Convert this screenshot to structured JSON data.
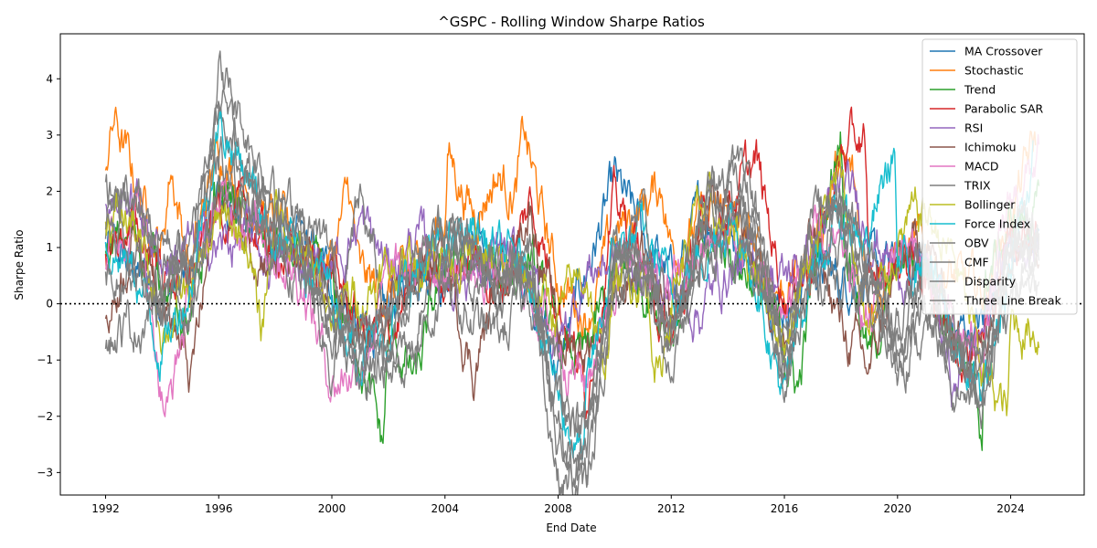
{
  "chart_data": {
    "type": "line",
    "title": "^GSPC - Rolling Window Sharpe Ratios",
    "xlabel": "End Date",
    "ylabel": "Sharpe Ratio",
    "xlim": [
      1990.4,
      2026.6
    ],
    "ylim": [
      -3.4,
      4.8
    ],
    "x_ticks": [
      1992,
      1996,
      2000,
      2004,
      2008,
      2012,
      2016,
      2020,
      2024
    ],
    "x_tick_labels": [
      "1992",
      "1996",
      "2000",
      "2004",
      "2008",
      "2012",
      "2016",
      "2020",
      "2024"
    ],
    "y_ticks": [
      -3,
      -2,
      -1,
      0,
      1,
      2,
      3,
      4
    ],
    "y_tick_labels": [
      "−3",
      "−2",
      "−1",
      "0",
      "1",
      "2",
      "3",
      "4"
    ],
    "reference_line": {
      "y": 0,
      "style": "dotted",
      "color": "#000000"
    },
    "legend_position": "top-right",
    "series": [
      {
        "name": "MA Crossover",
        "color": "#1f77b4",
        "x": [
          1992.0,
          1993.0,
          1994.0,
          1995.0,
          1996.0,
          1997.0,
          1998.0,
          1999.0,
          2000.0,
          2001.0,
          2002.0,
          2003.0,
          2004.0,
          2005.0,
          2006.0,
          2007.0,
          2008.0,
          2009.0,
          2010.0,
          2011.0,
          2012.0,
          2013.0,
          2014.0,
          2015.0,
          2016.0,
          2017.0,
          2018.0,
          2019.0,
          2020.0,
          2021.0,
          2022.0,
          2023.0,
          2024.0,
          2025.0
        ],
        "y": [
          1.0,
          0.6,
          0.2,
          0.4,
          1.8,
          1.6,
          1.2,
          1.0,
          0.4,
          -0.6,
          -0.2,
          0.8,
          0.6,
          0.9,
          0.7,
          0.5,
          -1.2,
          0.6,
          2.1,
          1.2,
          0.4,
          1.5,
          1.4,
          0.6,
          0.0,
          0.7,
          0.4,
          0.6,
          0.6,
          0.8,
          -0.6,
          -0.4,
          1.2,
          1.0
        ]
      },
      {
        "name": "Stochastic",
        "color": "#ff7f0e",
        "x": [
          1992.0,
          1992.3,
          1993.0,
          1994.0,
          1994.3,
          1995.0,
          1996.0,
          1997.0,
          1998.0,
          1999.0,
          2000.0,
          2000.6,
          2001.0,
          2002.0,
          2003.0,
          2004.0,
          2004.1,
          2005.0,
          2005.8,
          2006.5,
          2006.8,
          2007.5,
          2008.0,
          2009.0,
          2010.0,
          2011.0,
          2011.7,
          2012.0,
          2013.0,
          2014.0,
          2015.0,
          2016.0,
          2017.0,
          2017.9,
          2018.4,
          2019.0,
          2020.0,
          2021.0,
          2022.0,
          2023.0,
          2024.0,
          2024.9
        ],
        "y": [
          2.6,
          3.3,
          2.2,
          1.0,
          2.5,
          0.6,
          2.8,
          2.0,
          1.4,
          1.0,
          0.8,
          2.0,
          0.4,
          0.2,
          0.6,
          1.6,
          2.7,
          1.6,
          2.3,
          2.0,
          3.0,
          1.4,
          0.4,
          -0.2,
          1.2,
          1.8,
          2.1,
          1.0,
          1.4,
          1.6,
          0.9,
          0.2,
          0.9,
          2.4,
          2.2,
          0.2,
          0.8,
          1.0,
          0.4,
          0.2,
          1.6,
          2.9
        ]
      },
      {
        "name": "Trend",
        "color": "#2ca02c",
        "x": [
          1992.0,
          1993.0,
          1994.0,
          1995.0,
          1996.0,
          1997.0,
          1998.0,
          1999.0,
          2000.0,
          2001.0,
          2001.8,
          2002.0,
          2003.0,
          2004.0,
          2005.0,
          2006.0,
          2007.0,
          2008.0,
          2009.0,
          2010.0,
          2011.0,
          2012.0,
          2013.0,
          2014.0,
          2015.0,
          2016.0,
          2016.5,
          2017.0,
          2018.0,
          2018.1,
          2019.0,
          2020.0,
          2021.0,
          2022.0,
          2023.0,
          2023.1,
          2024.0,
          2025.0
        ],
        "y": [
          0.8,
          1.2,
          0.6,
          -0.6,
          2.2,
          1.4,
          1.0,
          0.6,
          0.2,
          -0.8,
          -2.6,
          -0.6,
          -1.4,
          0.8,
          0.6,
          0.4,
          0.8,
          -0.8,
          -1.0,
          0.6,
          0.4,
          -0.4,
          0.8,
          1.0,
          0.4,
          -0.8,
          -1.5,
          0.4,
          3.3,
          1.5,
          -1.0,
          0.6,
          0.8,
          -0.4,
          -2.3,
          0.4,
          1.4,
          1.6
        ]
      },
      {
        "name": "Parabolic SAR",
        "color": "#d62728",
        "x": [
          1992.0,
          1993.0,
          1994.0,
          1995.0,
          1996.0,
          1997.0,
          1998.0,
          1999.0,
          2000.0,
          2001.0,
          2002.0,
          2003.0,
          2004.0,
          2005.0,
          2006.0,
          2007.0,
          2008.0,
          2009.0,
          2010.0,
          2011.0,
          2012.0,
          2013.0,
          2014.0,
          2015.0,
          2016.0,
          2017.0,
          2018.0,
          2018.8,
          2019.0,
          2020.0,
          2021.0,
          2022.0,
          2023.0,
          2024.0,
          2025.0
        ],
        "y": [
          1.0,
          1.4,
          0.6,
          0.4,
          1.8,
          1.4,
          1.0,
          0.8,
          0.6,
          -0.4,
          -0.6,
          0.4,
          0.6,
          0.8,
          0.2,
          1.8,
          0.2,
          -1.6,
          1.8,
          0.8,
          -0.8,
          1.2,
          1.8,
          2.5,
          0.2,
          0.8,
          2.6,
          3.0,
          0.4,
          0.8,
          0.6,
          -0.6,
          -0.6,
          1.2,
          1.4
        ]
      },
      {
        "name": "RSI",
        "color": "#9467bd",
        "x": [
          1992.0,
          1993.0,
          1994.0,
          1995.0,
          1996.0,
          1997.0,
          1998.0,
          1999.0,
          2000.0,
          2001.0,
          2002.0,
          2003.0,
          2004.0,
          2005.0,
          2006.0,
          2007.0,
          2008.0,
          2009.0,
          2010.0,
          2011.0,
          2012.0,
          2013.0,
          2014.0,
          2015.0,
          2016.0,
          2017.0,
          2018.0,
          2019.0,
          2020.0,
          2021.0,
          2022.0,
          2023.0,
          2024.0,
          2025.0
        ],
        "y": [
          1.7,
          1.9,
          0.8,
          1.0,
          1.0,
          1.2,
          0.6,
          0.8,
          0.6,
          1.5,
          0.6,
          1.2,
          0.4,
          0.6,
          0.8,
          0.4,
          -0.8,
          0.6,
          0.8,
          0.6,
          0.2,
          -0.1,
          0.6,
          0.8,
          0.4,
          1.0,
          2.1,
          1.4,
          0.6,
          0.8,
          -1.6,
          -0.4,
          1.2,
          1.0
        ]
      },
      {
        "name": "Ichimoku",
        "color": "#8c564b",
        "x": [
          1992.0,
          1993.0,
          1994.0,
          1995.0,
          1996.0,
          1997.0,
          1998.0,
          1999.0,
          2000.0,
          2001.0,
          2002.0,
          2003.0,
          2004.0,
          2005.0,
          2006.0,
          2007.0,
          2008.0,
          2009.0,
          2010.0,
          2011.0,
          2012.0,
          2013.0,
          2014.0,
          2015.0,
          2016.0,
          2017.0,
          2018.0,
          2019.0,
          2020.0,
          2021.0,
          2022.0,
          2023.0,
          2024.0,
          2025.0
        ],
        "y": [
          -0.4,
          1.3,
          0.4,
          -1.4,
          2.0,
          1.2,
          0.8,
          0.6,
          0.4,
          -0.8,
          -0.4,
          0.6,
          0.8,
          -1.2,
          0.6,
          1.8,
          -0.6,
          -0.8,
          0.4,
          0.6,
          -0.6,
          1.2,
          2.0,
          0.8,
          -0.4,
          1.2,
          -0.4,
          -1.2,
          0.6,
          1.2,
          -0.6,
          -0.8,
          1.4,
          1.2
        ]
      },
      {
        "name": "MACD",
        "color": "#e377c2",
        "x": [
          1992.0,
          1993.0,
          1993.1,
          1994.0,
          1994.2,
          1995.0,
          1996.0,
          1997.0,
          1998.0,
          1999.0,
          2000.0,
          2001.0,
          2002.0,
          2003.0,
          2004.0,
          2005.0,
          2006.0,
          2007.0,
          2008.0,
          2009.0,
          2010.0,
          2011.0,
          2012.0,
          2013.0,
          2014.0,
          2015.0,
          2016.0,
          2017.0,
          2018.0,
          2019.0,
          2020.0,
          2021.0,
          2022.0,
          2023.0,
          2024.0,
          2025.0
        ],
        "y": [
          0.8,
          1.6,
          2.2,
          -1.6,
          -1.9,
          0.2,
          1.8,
          1.6,
          1.0,
          0.4,
          -1.4,
          -1.0,
          0.4,
          0.6,
          0.8,
          0.4,
          0.6,
          0.2,
          -0.6,
          -1.4,
          0.6,
          0.8,
          0.2,
          0.8,
          1.2,
          0.6,
          -0.2,
          1.0,
          0.8,
          -0.4,
          1.2,
          0.6,
          -0.6,
          -0.8,
          1.8,
          2.6
        ]
      },
      {
        "name": "TRIX",
        "color": "#7f7f7f",
        "x": [
          1992.0,
          1993.0,
          1994.0,
          1995.0,
          1996.0,
          1997.0,
          1998.0,
          1999.0,
          2000.0,
          2001.0,
          2002.0,
          2003.0,
          2004.0,
          2005.0,
          2006.0,
          2007.0,
          2008.0,
          2009.0,
          2010.0,
          2011.0,
          2012.0,
          2013.0,
          2014.0,
          2015.0,
          2016.0,
          2017.0,
          2018.0,
          2019.0,
          2020.0,
          2021.0,
          2022.0,
          2023.0,
          2024.0,
          2025.0
        ],
        "y": [
          1.4,
          1.8,
          0.8,
          0.6,
          3.8,
          2.4,
          1.6,
          1.2,
          -1.2,
          1.8,
          -0.4,
          0.4,
          1.2,
          0.6,
          0.4,
          0.8,
          -2.8,
          -3.2,
          0.6,
          0.8,
          -0.8,
          1.8,
          2.0,
          1.4,
          -1.2,
          1.2,
          1.6,
          0.6,
          -1.0,
          0.6,
          -1.4,
          -1.8,
          0.8,
          1.2
        ]
      },
      {
        "name": "Bollinger",
        "color": "#bcbd22",
        "x": [
          1992.0,
          1993.0,
          1994.0,
          1995.0,
          1996.0,
          1997.0,
          1997.5,
          1998.0,
          1999.0,
          2000.0,
          2001.0,
          2002.0,
          2003.0,
          2004.0,
          2005.0,
          2006.0,
          2007.0,
          2008.0,
          2009.0,
          2009.6,
          2010.0,
          2011.0,
          2011.6,
          2012.0,
          2013.0,
          2014.0,
          2015.0,
          2016.0,
          2017.0,
          2018.0,
          2019.0,
          2020.0,
          2021.0,
          2022.0,
          2023.0,
          2023.9,
          2024.0,
          2025.0
        ],
        "y": [
          1.6,
          1.4,
          -0.4,
          0.2,
          1.4,
          1.2,
          -0.6,
          1.8,
          0.8,
          -0.2,
          0.2,
          0.6,
          0.8,
          1.0,
          0.8,
          0.6,
          0.4,
          -0.2,
          0.6,
          -1.3,
          0.4,
          0.6,
          -1.4,
          0.2,
          1.7,
          1.2,
          0.6,
          -0.6,
          1.2,
          2.2,
          -0.6,
          1.2,
          1.6,
          0.8,
          -1.2,
          -2.0,
          -0.4,
          -0.4
        ]
      },
      {
        "name": "Force Index",
        "color": "#17becf",
        "x": [
          1992.0,
          1993.0,
          1994.0,
          1995.0,
          1996.0,
          1997.0,
          1998.0,
          1999.0,
          2000.0,
          2001.0,
          2002.0,
          2003.0,
          2004.0,
          2005.0,
          2006.0,
          2007.0,
          2008.0,
          2008.9,
          2009.0,
          2010.0,
          2011.0,
          2012.0,
          2013.0,
          2014.0,
          2015.0,
          2016.0,
          2017.0,
          2018.0,
          2019.0,
          2019.9,
          2020.0,
          2021.0,
          2022.0,
          2023.0,
          2024.0,
          2024.8
        ],
        "y": [
          1.0,
          0.6,
          -0.8,
          0.4,
          3.2,
          2.4,
          1.2,
          0.8,
          0.2,
          -0.8,
          -0.4,
          0.6,
          1.0,
          1.4,
          0.8,
          0.6,
          -1.6,
          -2.8,
          -1.8,
          1.0,
          1.2,
          0.2,
          0.8,
          1.6,
          0.6,
          -1.8,
          0.8,
          1.4,
          1.2,
          2.8,
          0.4,
          1.0,
          -0.8,
          -1.8,
          0.8,
          2.6
        ]
      },
      {
        "name": "OBV",
        "color": "#7f7f7f",
        "x": [
          1992.0,
          1993.0,
          1994.0,
          1995.0,
          1996.0,
          1997.0,
          1998.0,
          1999.0,
          2000.0,
          2001.0,
          2002.0,
          2003.0,
          2004.0,
          2005.0,
          2006.0,
          2007.0,
          2008.0,
          2009.0,
          2010.0,
          2011.0,
          2012.0,
          2013.0,
          2014.0,
          2015.0,
          2016.0,
          2017.0,
          2018.0,
          2019.0,
          2020.0,
          2021.0,
          2022.0,
          2023.0,
          2024.0,
          2025.0
        ],
        "y": [
          2.0,
          1.6,
          1.2,
          0.8,
          4.2,
          3.0,
          2.0,
          1.4,
          0.8,
          -1.6,
          -0.8,
          0.6,
          1.6,
          0.8,
          0.4,
          0.6,
          -3.0,
          -3.4,
          0.8,
          1.0,
          -1.2,
          1.6,
          2.4,
          1.6,
          -1.6,
          1.4,
          1.8,
          0.6,
          -1.4,
          0.8,
          -1.2,
          -1.8,
          1.0,
          1.4
        ]
      },
      {
        "name": "CMF",
        "color": "#7f7f7f",
        "x": [
          1992.0,
          1993.0,
          1994.0,
          1995.0,
          1996.0,
          1997.0,
          1998.0,
          1999.0,
          2000.0,
          2001.0,
          2002.0,
          2003.0,
          2004.0,
          2005.0,
          2006.0,
          2007.0,
          2008.0,
          2009.0,
          2010.0,
          2011.0,
          2012.0,
          2013.0,
          2014.0,
          2015.0,
          2016.0,
          2017.0,
          2018.0,
          2019.0,
          2020.0,
          2021.0,
          2022.0,
          2023.0,
          2024.0,
          2025.0
        ],
        "y": [
          -0.6,
          -0.4,
          0.2,
          -0.2,
          2.4,
          1.8,
          1.0,
          0.4,
          -0.4,
          -0.8,
          -1.2,
          -0.6,
          0.2,
          -0.4,
          -0.6,
          0.2,
          -1.2,
          -2.4,
          0.2,
          0.4,
          -1.0,
          0.6,
          1.2,
          0.6,
          -0.8,
          0.4,
          0.6,
          -0.4,
          -0.8,
          -0.6,
          -0.8,
          -1.2,
          0.2,
          0.4
        ]
      },
      {
        "name": "Disparity",
        "color": "#7f7f7f",
        "x": [
          1992.0,
          1993.0,
          1994.0,
          1995.0,
          1996.0,
          1997.0,
          1998.0,
          1999.0,
          2000.0,
          2001.0,
          2002.0,
          2003.0,
          2004.0,
          2005.0,
          2006.0,
          2007.0,
          2008.0,
          2009.0,
          2010.0,
          2011.0,
          2012.0,
          2013.0,
          2014.0,
          2015.0,
          2016.0,
          2017.0,
          2018.0,
          2019.0,
          2020.0,
          2021.0,
          2022.0,
          2023.0,
          2024.0,
          2025.0
        ],
        "y": [
          1.2,
          1.0,
          0.4,
          0.6,
          3.6,
          2.2,
          1.6,
          1.0,
          0.2,
          -1.0,
          -0.2,
          0.8,
          1.4,
          1.0,
          0.8,
          0.8,
          -2.2,
          -2.6,
          1.2,
          1.4,
          -0.4,
          1.4,
          2.2,
          1.6,
          -1.4,
          1.6,
          1.8,
          0.8,
          -0.2,
          1.0,
          -1.0,
          -1.4,
          1.2,
          1.6
        ]
      },
      {
        "name": "Three Line Break",
        "color": "#7f7f7f",
        "x": [
          1992.0,
          1993.0,
          1994.0,
          1995.0,
          1996.0,
          1997.0,
          1998.0,
          1999.0,
          2000.0,
          2001.0,
          2002.0,
          2003.0,
          2004.0,
          2005.0,
          2006.0,
          2007.0,
          2008.0,
          2009.0,
          2010.0,
          2011.0,
          2012.0,
          2013.0,
          2014.0,
          2015.0,
          2016.0,
          2017.0,
          2018.0,
          2019.0,
          2020.0,
          2021.0,
          2022.0,
          2023.0,
          2024.0,
          2025.0
        ],
        "y": [
          0.6,
          0.8,
          -0.2,
          0.4,
          2.0,
          1.6,
          1.2,
          0.8,
          -0.6,
          -0.4,
          -1.0,
          -0.2,
          1.0,
          0.4,
          0.2,
          0.4,
          -1.8,
          -2.0,
          0.6,
          0.6,
          -0.6,
          1.0,
          1.6,
          1.0,
          -1.0,
          0.8,
          1.2,
          0.2,
          -0.6,
          0.2,
          -0.6,
          -1.0,
          0.6,
          1.0
        ]
      }
    ]
  }
}
